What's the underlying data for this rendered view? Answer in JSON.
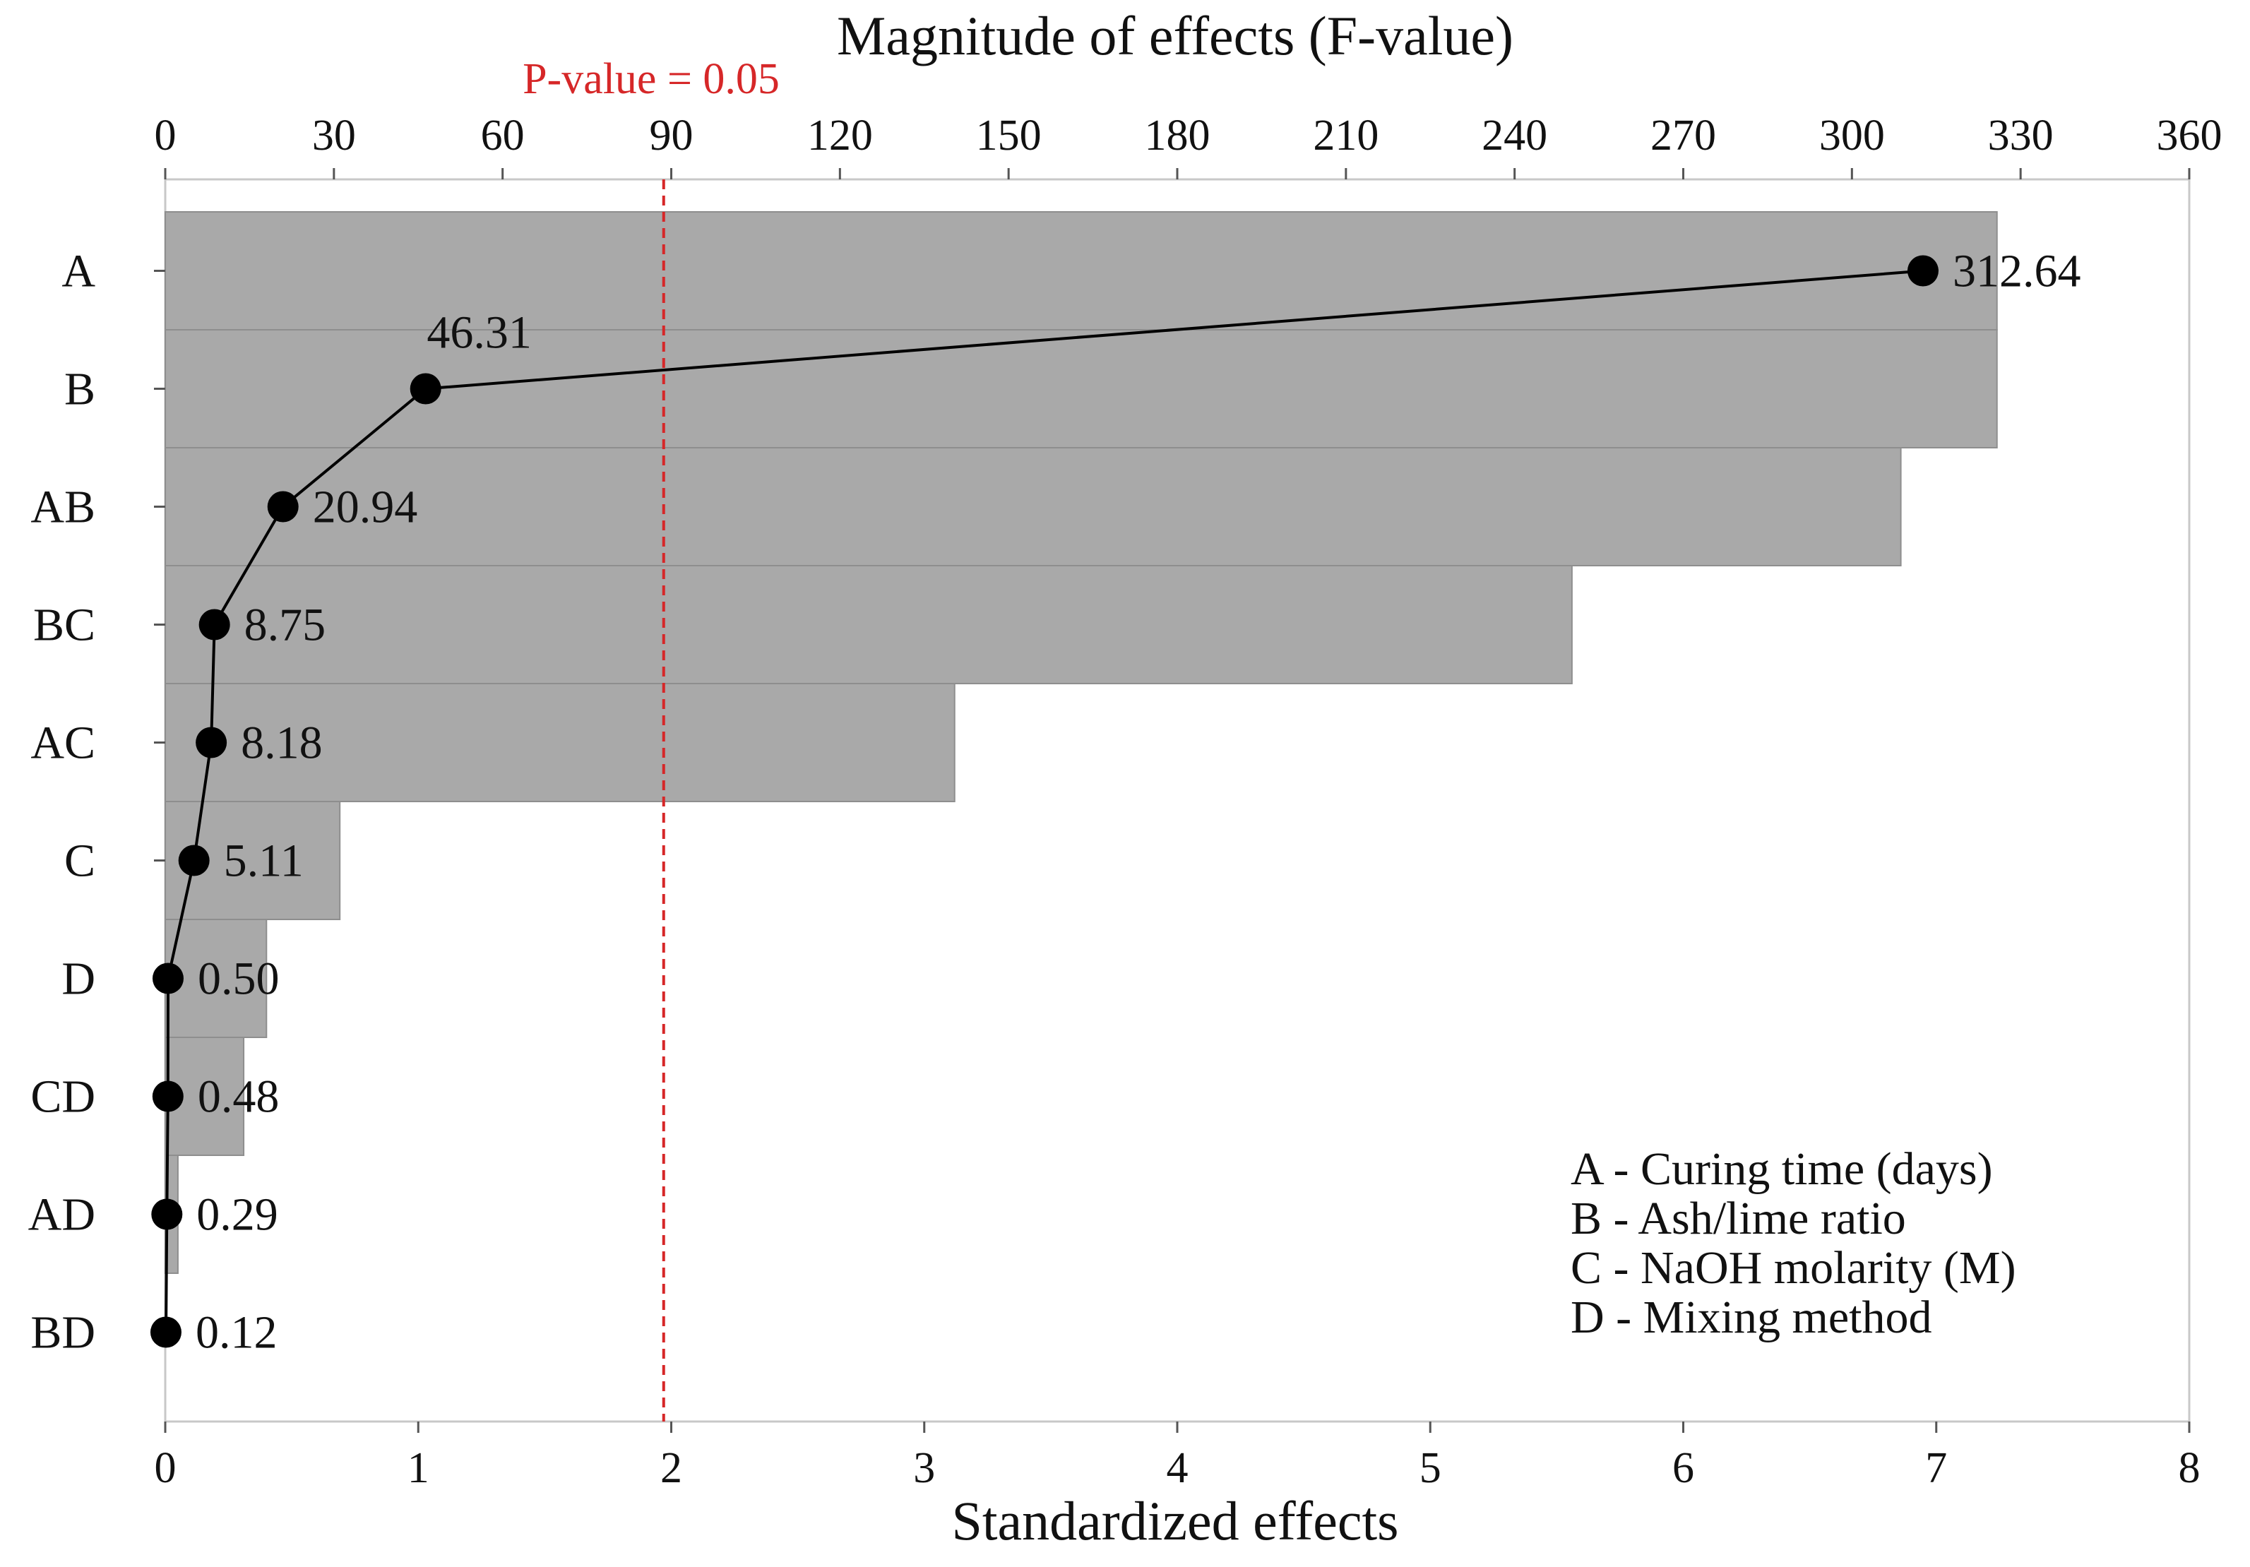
{
  "chart_data": {
    "type": "bar",
    "title": "Magnitude of effects (F-value)",
    "xlabel": "Standardized effects",
    "categories": [
      "A",
      "B",
      "AB",
      "BC",
      "AC",
      "C",
      "D",
      "CD",
      "AD",
      "BD"
    ],
    "standardized_effects": [
      7.24,
      7.24,
      6.86,
      5.56,
      3.12,
      0.69,
      0.4,
      0.31,
      0.05,
      0.0
    ],
    "series": [
      {
        "name": "Standardized effects",
        "type": "bar",
        "values": [
          7.24,
          7.24,
          6.86,
          5.56,
          3.12,
          0.69,
          0.4,
          0.31,
          0.05,
          0.0
        ]
      },
      {
        "name": "Magnitude of effects (F-value)",
        "type": "line",
        "values": [
          312.64,
          46.31,
          20.94,
          8.75,
          8.18,
          5.11,
          0.5,
          0.48,
          0.29,
          0.12
        ]
      }
    ],
    "data_labels": [
      "312.64",
      "46.31",
      "20.94",
      "8.75",
      "8.18",
      "5.11",
      "0.50",
      "0.48",
      "0.29",
      "0.12"
    ],
    "bottom_axis": {
      "range": [
        0,
        8
      ],
      "ticks": [
        0,
        1,
        2,
        3,
        4,
        5,
        6,
        7,
        8
      ]
    },
    "top_axis": {
      "range": [
        0,
        360
      ],
      "ticks": [
        0,
        30,
        60,
        90,
        120,
        150,
        180,
        210,
        240,
        270,
        300,
        330,
        360
      ]
    },
    "reference_line": {
      "label": "P-value = 0.05",
      "value": 1.97,
      "color": "#d62728"
    },
    "legend_placement": "bottom-right",
    "legend": [
      "A - Curing time (days)",
      "B - Ash/lime ratio",
      "C - NaOH molarity (M)",
      "D - Mixing method"
    ],
    "colors": {
      "bar_fill": "#a9a9a9",
      "bar_edge": "#8e8e8e",
      "line": "#000000",
      "marker": "#000000",
      "frame": "#c8c8c8"
    }
  }
}
